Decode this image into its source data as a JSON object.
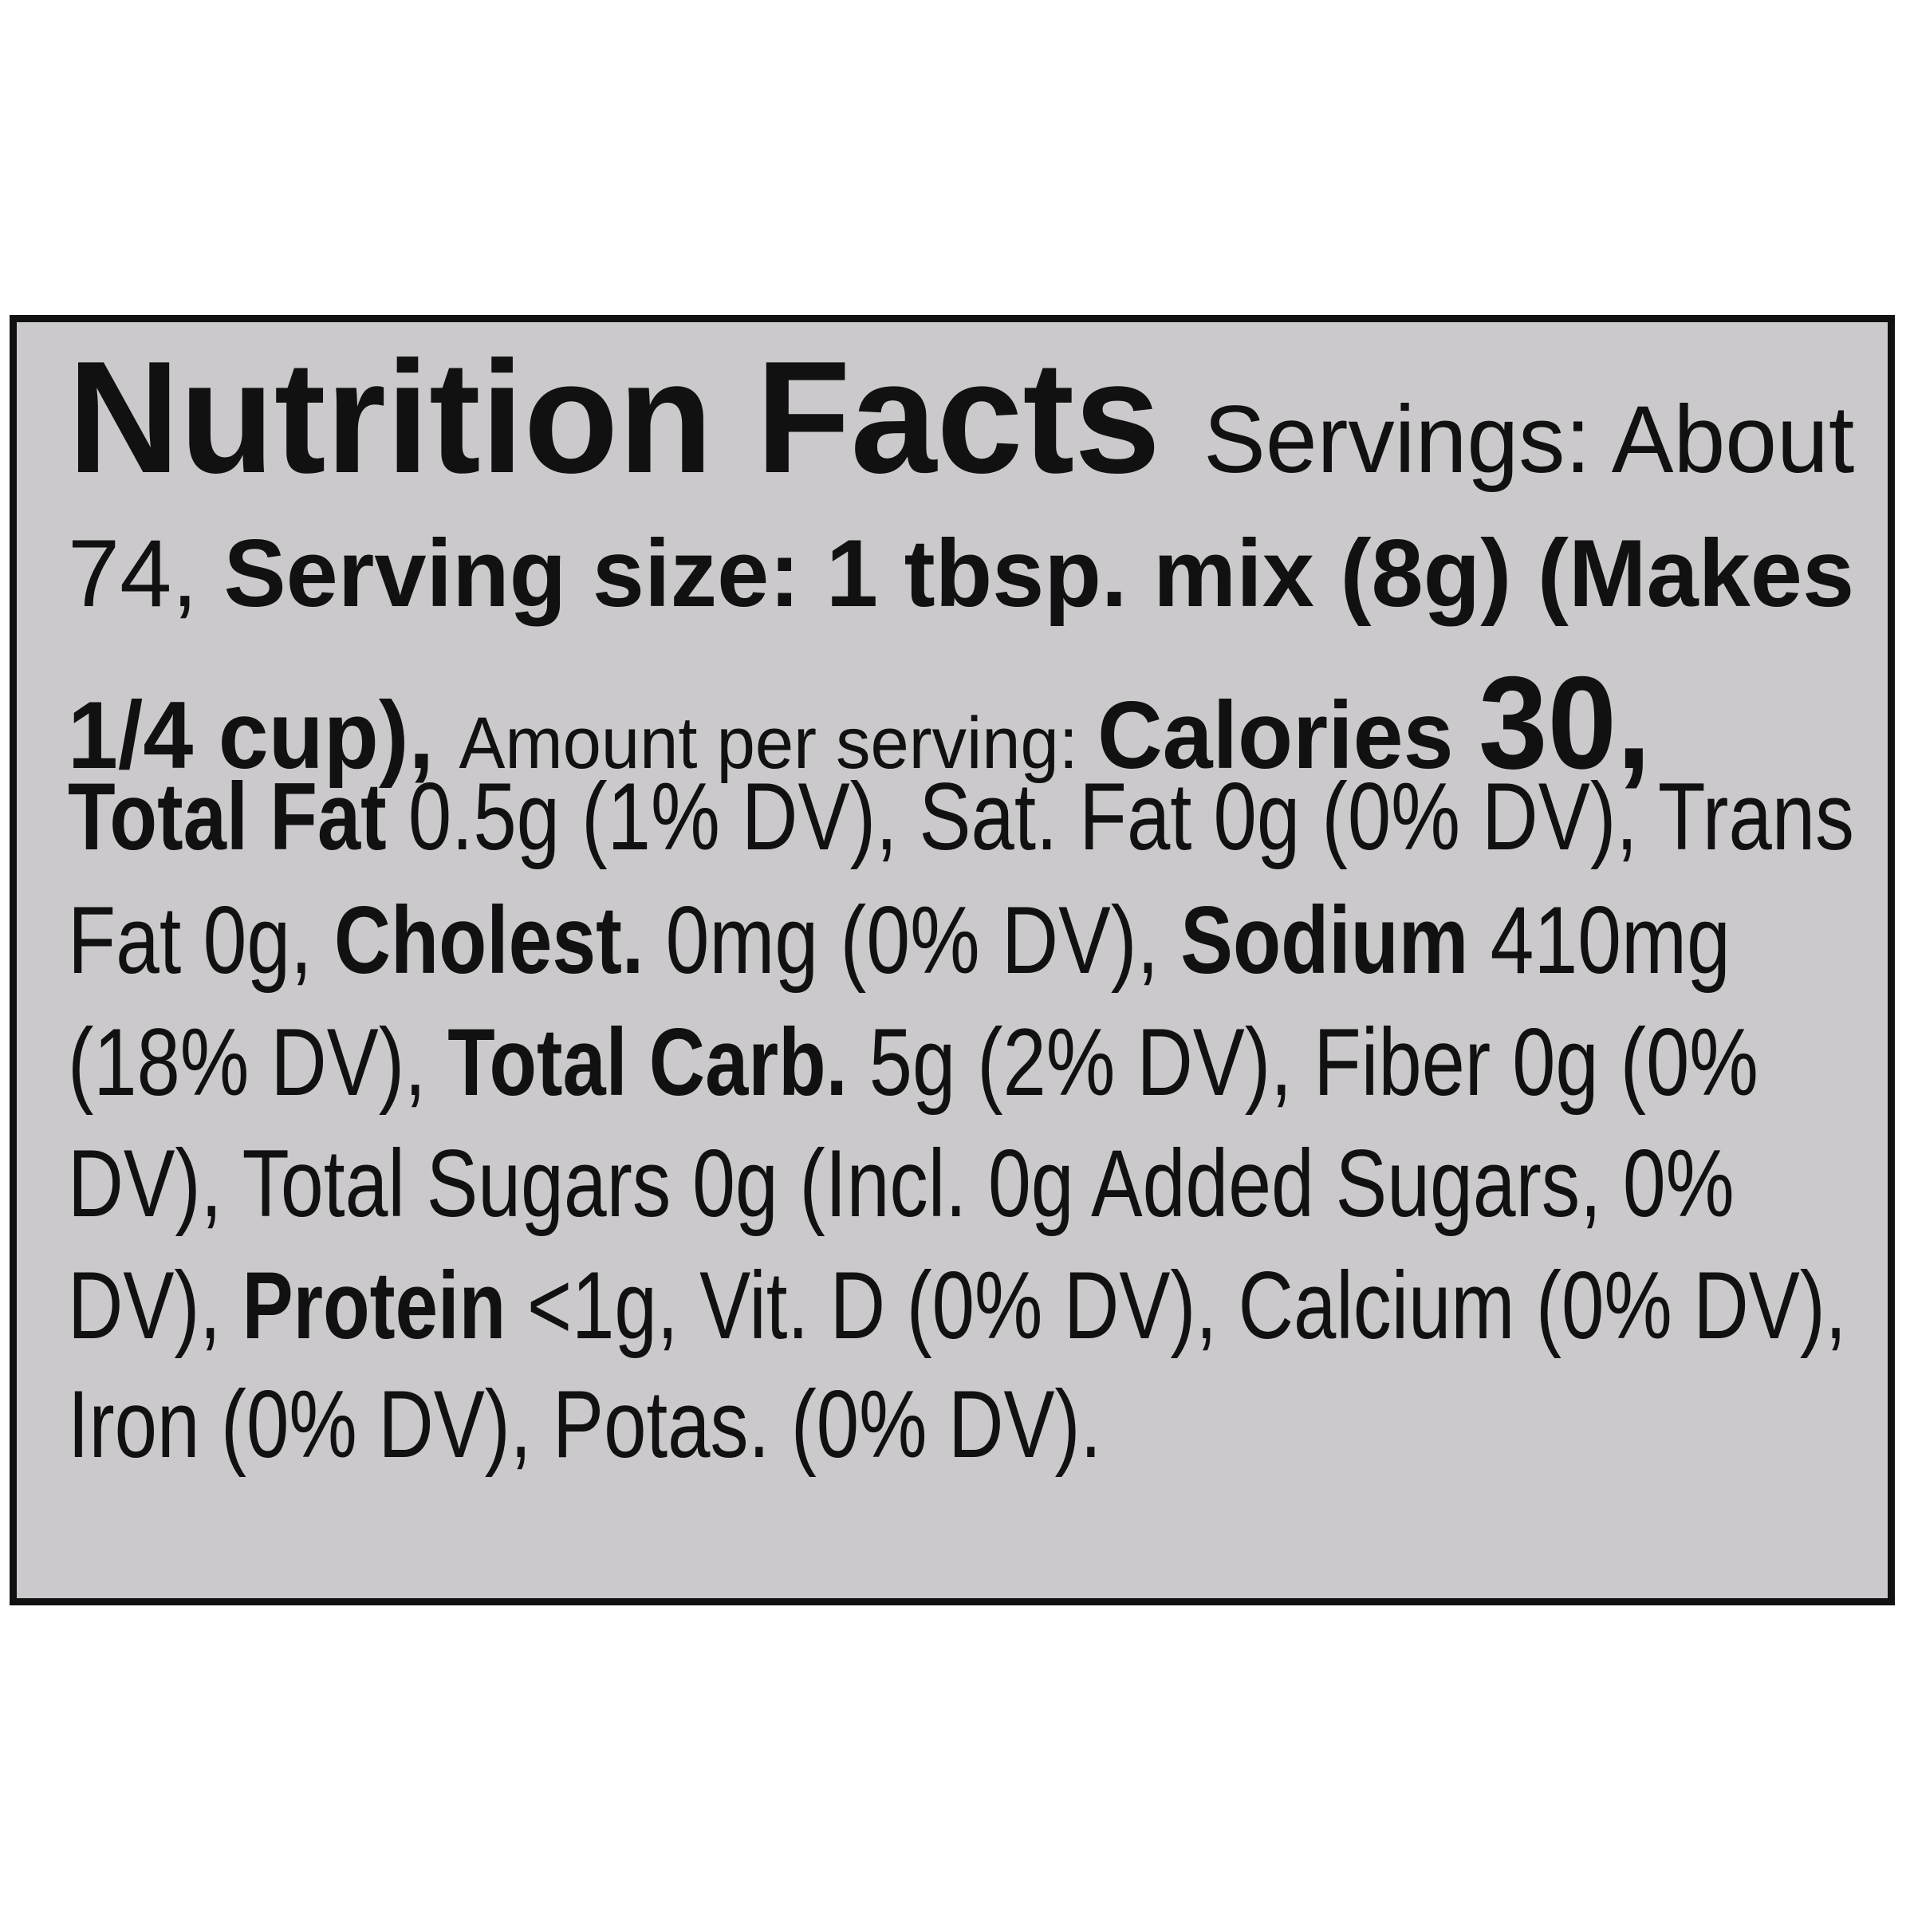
{
  "label": {
    "lines": [
      [
        {
          "t": "Nutrition Facts ",
          "s": "title"
        },
        {
          "t": "Servings: About",
          "s": ""
        }
      ],
      [
        {
          "t": "74, ",
          "s": ""
        },
        {
          "t": "Serving size: 1 tbsp. mix (8g) (Makes",
          "s": "b"
        }
      ],
      [
        {
          "t": "1/4 cup), ",
          "s": "b"
        },
        {
          "t": "Amount per serving: ",
          "s": "small"
        },
        {
          "t": "Calories ",
          "s": "b"
        },
        {
          "t": "30,",
          "s": "big"
        }
      ],
      [
        {
          "t": "Total Fat ",
          "s": "b"
        },
        {
          "t": "0.5g (1% DV), Sat. Fat 0g (0% DV), Trans",
          "s": ""
        }
      ],
      [
        {
          "t": "Fat 0g, ",
          "s": ""
        },
        {
          "t": "Cholest. ",
          "s": "b"
        },
        {
          "t": "0mg (0% DV), ",
          "s": ""
        },
        {
          "t": "Sodium ",
          "s": "b"
        },
        {
          "t": "410mg",
          "s": ""
        }
      ],
      [
        {
          "t": "(18% DV), ",
          "s": ""
        },
        {
          "t": "Total Carb. ",
          "s": "b"
        },
        {
          "t": "5g (2% DV), Fiber 0g (0%",
          "s": ""
        }
      ],
      [
        {
          "t": "DV), Total Sugars 0g (Incl. 0g Added Sugars, 0%",
          "s": ""
        }
      ],
      [
        {
          "t": "DV), ",
          "s": ""
        },
        {
          "t": "Protein ",
          "s": "b"
        },
        {
          "t": "<1g, Vit. D (0% DV), Calcium (0% DV),",
          "s": ""
        }
      ],
      [
        {
          "t": "Iron (0% DV), Potas. (0% DV).",
          "s": ""
        }
      ]
    ]
  }
}
